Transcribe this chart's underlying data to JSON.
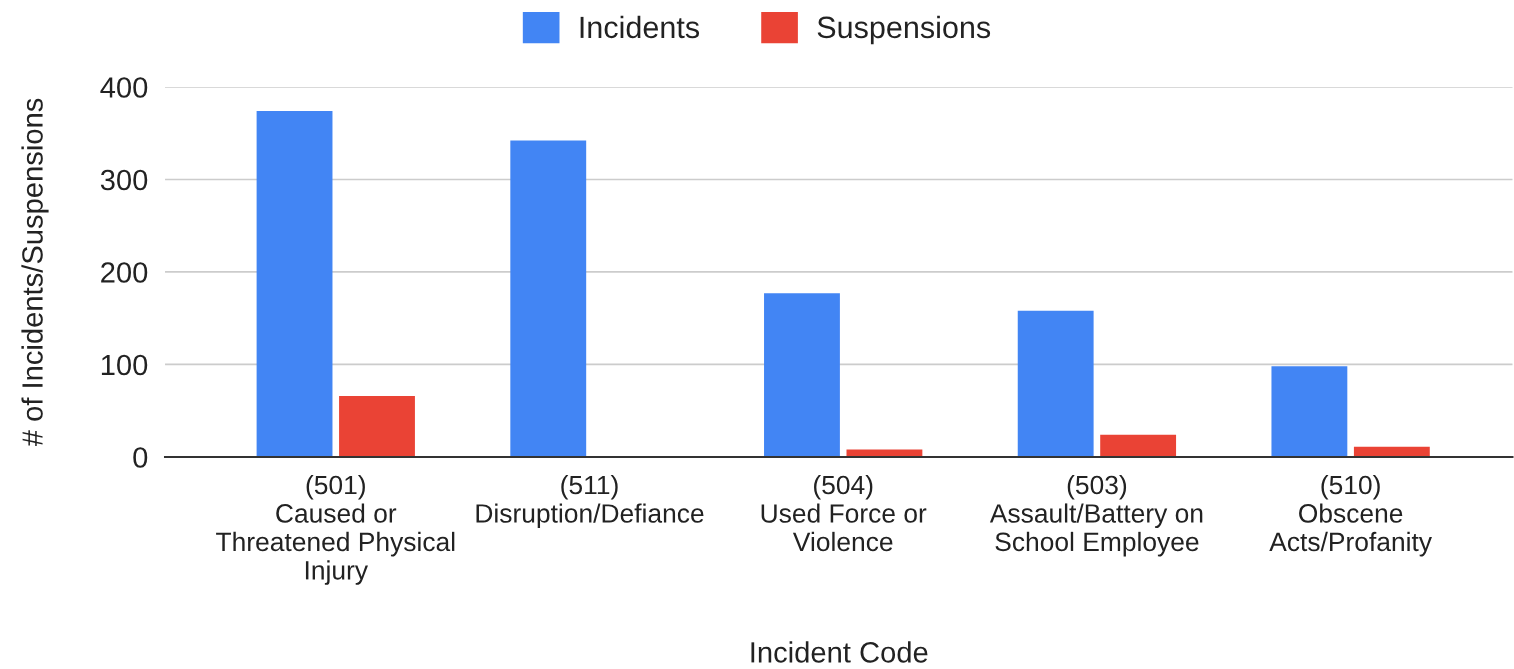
{
  "chart_data": {
    "type": "bar",
    "categories": [
      "(501)\nCaused or\nThreatened Physical\nInjury",
      "(511)\nDisruption/Defiance",
      "(504)\nUsed Force or\nViolence",
      "(503)\nAssault/Battery on\nSchool Employee",
      "(510)\nObscene\nActs/Profanity"
    ],
    "series": [
      {
        "name": "Incidents",
        "color": "#4285f4",
        "values": [
          374,
          342,
          177,
          158,
          98
        ]
      },
      {
        "name": "Suspensions",
        "color": "#ea4335",
        "values": [
          66,
          0,
          8,
          24,
          11
        ]
      }
    ],
    "xlabel": "Incident Code",
    "ylabel": "# of Incidents/Suspensions",
    "ylim": [
      0,
      400
    ],
    "yticks": [
      0,
      100,
      200,
      300,
      400
    ],
    "grid": "y",
    "legend": "top"
  }
}
